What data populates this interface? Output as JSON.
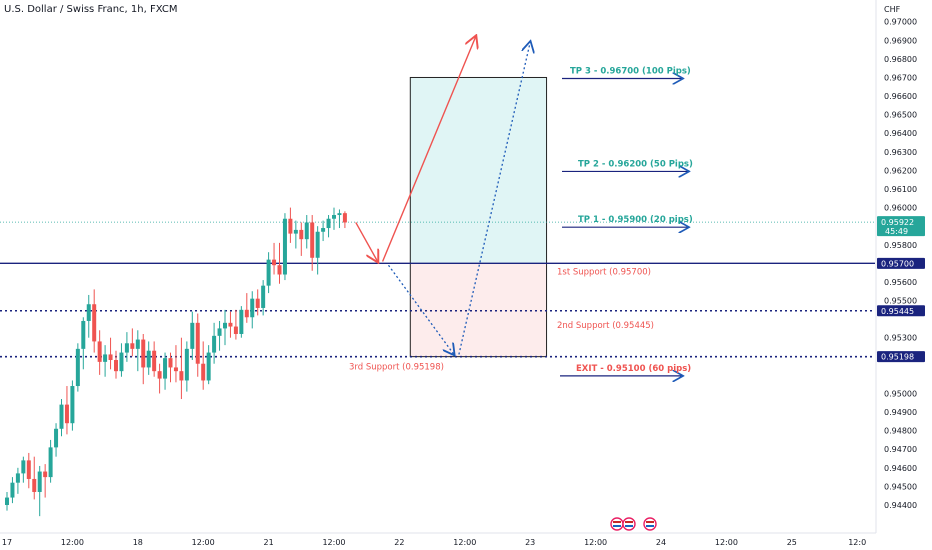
{
  "title": "U.S. Dollar / Swiss Franc, 1h, FXCM",
  "currency": "CHF",
  "colors": {
    "up": "#26a69a",
    "down": "#ef5350",
    "blue": "#1a237e",
    "tp": "#26a69a",
    "tp_text": "#26a69a",
    "exit_text": "#ef5350",
    "support_text": "#ef5350",
    "profit_fill": "#e0f5f5",
    "loss_fill": "#fdecec",
    "arrow_blue": "#1e5bb8",
    "arrow_red": "#ef5350"
  },
  "chart_data": {
    "type": "candlestick",
    "y_range": [
      0.9433,
      0.9702
    ],
    "y_ticks": [
      "0.97000",
      "0.96900",
      "0.96800",
      "0.96700",
      "0.96600",
      "0.96500",
      "0.96400",
      "0.96300",
      "0.96200",
      "0.96100",
      "0.96000",
      "0.95800",
      "0.95600",
      "0.95500",
      "0.95300",
      "0.95000",
      "0.94900",
      "0.94800",
      "0.94700",
      "0.94600",
      "0.94500",
      "0.94400"
    ],
    "x_ticks": [
      {
        "label": "17",
        "i": 0
      },
      {
        "label": "12:00",
        "i": 12
      },
      {
        "label": "18",
        "i": 24
      },
      {
        "label": "12:00",
        "i": 36
      },
      {
        "label": "21",
        "i": 48
      },
      {
        "label": "12:00",
        "i": 60
      },
      {
        "label": "22",
        "i": 72
      },
      {
        "label": "12:00",
        "i": 84
      },
      {
        "label": "23",
        "i": 96
      },
      {
        "label": "12:00",
        "i": 108
      },
      {
        "label": "24",
        "i": 120
      },
      {
        "label": "12:00",
        "i": 132
      },
      {
        "label": "25",
        "i": 144
      },
      {
        "label": "12:0",
        "i": 156
      }
    ],
    "candles": [
      [
        0.944,
        0.9447,
        0.9437,
        0.9444
      ],
      [
        0.9444,
        0.9455,
        0.9441,
        0.9452
      ],
      [
        0.9452,
        0.946,
        0.9446,
        0.9457
      ],
      [
        0.9457,
        0.9466,
        0.9452,
        0.9464
      ],
      [
        0.9464,
        0.9468,
        0.9449,
        0.9454
      ],
      [
        0.9454,
        0.9466,
        0.9443,
        0.9447
      ],
      [
        0.9447,
        0.9461,
        0.9434,
        0.9458
      ],
      [
        0.9458,
        0.9462,
        0.9444,
        0.9455
      ],
      [
        0.9455,
        0.9475,
        0.9452,
        0.9471
      ],
      [
        0.9471,
        0.9484,
        0.9466,
        0.9481
      ],
      [
        0.9481,
        0.9497,
        0.9477,
        0.9494
      ],
      [
        0.9494,
        0.9504,
        0.9478,
        0.9484
      ],
      [
        0.9484,
        0.9507,
        0.948,
        0.9504
      ],
      [
        0.9504,
        0.9527,
        0.9501,
        0.9524
      ],
      [
        0.9524,
        0.9541,
        0.9513,
        0.9539
      ],
      [
        0.9539,
        0.9553,
        0.953,
        0.9548
      ],
      [
        0.9548,
        0.9556,
        0.9522,
        0.9528
      ],
      [
        0.9528,
        0.9534,
        0.951,
        0.9517
      ],
      [
        0.9517,
        0.9526,
        0.9509,
        0.9521
      ],
      [
        0.9521,
        0.953,
        0.9513,
        0.9518
      ],
      [
        0.9518,
        0.9523,
        0.9508,
        0.9512
      ],
      [
        0.9512,
        0.9527,
        0.9509,
        0.9522
      ],
      [
        0.9522,
        0.9533,
        0.9517,
        0.9527
      ],
      [
        0.9527,
        0.9535,
        0.952,
        0.9524
      ],
      [
        0.9524,
        0.9534,
        0.9512,
        0.9529
      ],
      [
        0.9529,
        0.9532,
        0.9505,
        0.9514
      ],
      [
        0.9514,
        0.9528,
        0.951,
        0.9523
      ],
      [
        0.9523,
        0.9528,
        0.9509,
        0.9512
      ],
      [
        0.9512,
        0.9516,
        0.95,
        0.9508
      ],
      [
        0.9508,
        0.9522,
        0.9502,
        0.9519
      ],
      [
        0.9519,
        0.9522,
        0.9506,
        0.9514
      ],
      [
        0.9514,
        0.9526,
        0.9506,
        0.9512
      ],
      [
        0.9512,
        0.953,
        0.9497,
        0.9507
      ],
      [
        0.9507,
        0.9528,
        0.9501,
        0.9524
      ],
      [
        0.9524,
        0.9544,
        0.9518,
        0.9538
      ],
      [
        0.9538,
        0.9543,
        0.9509,
        0.9516
      ],
      [
        0.9516,
        0.9528,
        0.9502,
        0.9507
      ],
      [
        0.9507,
        0.9526,
        0.9505,
        0.9522
      ],
      [
        0.9522,
        0.9538,
        0.9516,
        0.9531
      ],
      [
        0.9531,
        0.9539,
        0.9523,
        0.9535
      ],
      [
        0.9535,
        0.9545,
        0.9526,
        0.9538
      ],
      [
        0.9538,
        0.9544,
        0.953,
        0.9536
      ],
      [
        0.9536,
        0.9545,
        0.9529,
        0.9532
      ],
      [
        0.9532,
        0.9547,
        0.953,
        0.9545
      ],
      [
        0.9545,
        0.9554,
        0.9538,
        0.9541
      ],
      [
        0.9541,
        0.9555,
        0.9535,
        0.9551
      ],
      [
        0.9551,
        0.9556,
        0.9542,
        0.9546
      ],
      [
        0.9546,
        0.9561,
        0.9542,
        0.9558
      ],
      [
        0.9558,
        0.9576,
        0.9554,
        0.9572
      ],
      [
        0.9572,
        0.9581,
        0.9564,
        0.9569
      ],
      [
        0.9569,
        0.9581,
        0.9559,
        0.9564
      ],
      [
        0.9564,
        0.9597,
        0.9561,
        0.9594
      ],
      [
        0.9594,
        0.96,
        0.9581,
        0.9586
      ],
      [
        0.9586,
        0.9593,
        0.9578,
        0.9588
      ],
      [
        0.9588,
        0.9592,
        0.9574,
        0.9583
      ],
      [
        0.9583,
        0.9596,
        0.9578,
        0.9592
      ],
      [
        0.9592,
        0.9596,
        0.9566,
        0.9573
      ],
      [
        0.9573,
        0.959,
        0.9564,
        0.9587
      ],
      [
        0.9587,
        0.9593,
        0.9582,
        0.9589
      ],
      [
        0.9589,
        0.9596,
        0.9584,
        0.9594
      ],
      [
        0.9594,
        0.96,
        0.9588,
        0.9596
      ],
      [
        0.9596,
        0.9599,
        0.9589,
        0.9597
      ],
      [
        0.9597,
        0.9598,
        0.9589,
        0.9592
      ]
    ],
    "levels": [
      {
        "price": 0.957,
        "style": "solid",
        "label": "0.95700",
        "text": "1st Support (0.95700)"
      },
      {
        "price": 0.95445,
        "style": "dotted",
        "label": "0.95445",
        "text": "2nd Support (0.95445)"
      },
      {
        "price": 0.95198,
        "style": "dotted",
        "label": "0.95198",
        "text": "3rd Support (0.95198)"
      }
    ],
    "current_price": {
      "value": "0.95922",
      "timer": "45:49",
      "price": 0.95922
    },
    "position": {
      "entry": 0.957,
      "tp": 0.967,
      "sl": 0.95198
    },
    "targets": [
      {
        "price": 0.967,
        "text": "TP 3 - 0.96700 (100 Pips)",
        "kind": "tp"
      },
      {
        "price": 0.962,
        "text": "TP 2 - 0.96200 (50 Pips)",
        "kind": "tp"
      },
      {
        "price": 0.959,
        "text": "TP 1 - 0.95900 (20 pips)",
        "kind": "tp"
      },
      {
        "price": 0.951,
        "text": "EXIT - 0.95100 (60 pips)",
        "kind": "exit"
      }
    ],
    "paths": {
      "red_solid": [
        {
          "i": 64,
          "p": 0.9592
        },
        {
          "i": 68,
          "p": 0.9571
        },
        {
          "i": 86,
          "p": 0.9692
        }
      ],
      "blue_dotted": [
        {
          "i": 70,
          "p": 0.9569
        },
        {
          "i": 82,
          "p": 0.9521
        },
        {
          "i": 96,
          "p": 0.9689
        }
      ]
    }
  },
  "event_icons": [
    "us-flag-icon",
    "us-flag-icon",
    "us-flag-icon"
  ]
}
